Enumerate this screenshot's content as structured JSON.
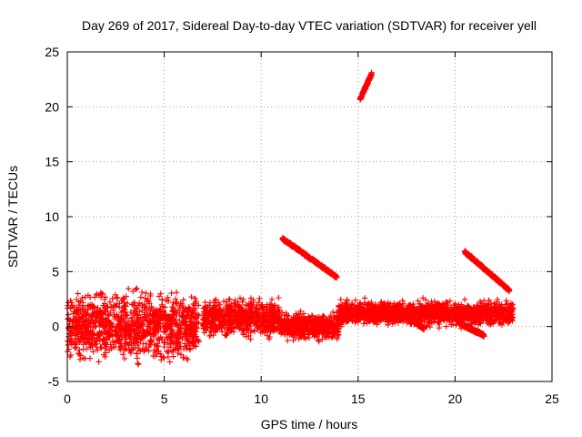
{
  "chart_data": {
    "type": "scatter",
    "title": "Day 269 of 2017, Sidereal Day-to-day VTEC variation (SDTVAR) for receiver yell",
    "xlabel": "GPS time / hours",
    "ylabel": "SDTVAR / TECUs",
    "xlim": [
      0,
      25
    ],
    "ylim": [
      -5,
      25
    ],
    "xticks": [
      0,
      5,
      10,
      15,
      20,
      25
    ],
    "yticks": [
      -5,
      0,
      5,
      10,
      15,
      20,
      25
    ],
    "xtick_labels": [
      "0",
      "5",
      "10",
      "15",
      "20",
      "25"
    ],
    "ytick_labels": [
      "-5",
      "0",
      "5",
      "10",
      "15",
      "20",
      "25"
    ],
    "grid": true,
    "marker": "+",
    "marker_color": "#ff0000",
    "series": [
      {
        "name": "SDTVAR",
        "description": "dense noisy cluster",
        "x_start": 0.0,
        "x_end": 6.8,
        "y_center": 0.0,
        "y_spread": 2.5
      },
      {
        "name": "SDTVAR",
        "x_start": 7.0,
        "x_end": 11.0,
        "y_center": 0.8,
        "y_spread": 1.4
      },
      {
        "name": "SDTVAR",
        "x_start": 11.0,
        "x_end": 14.0,
        "y_center": 0.0,
        "y_spread": 1.0
      },
      {
        "name": "SDTVAR",
        "x_start": 14.0,
        "x_end": 23.0,
        "y_center": 1.2,
        "y_spread": 0.9
      },
      {
        "name": "SDTVAR",
        "description": "arc",
        "x_start": 11.1,
        "x_end": 13.9,
        "y_start": 8.0,
        "y_end": 4.5
      },
      {
        "name": "SDTVAR",
        "description": "arc",
        "x_start": 15.1,
        "x_end": 15.7,
        "y_start": 20.7,
        "y_end": 23.0
      },
      {
        "name": "SDTVAR",
        "description": "arc",
        "x_start": 20.5,
        "x_end": 22.8,
        "y_start": 6.8,
        "y_end": 3.3
      },
      {
        "name": "SDTVAR",
        "description": "arc",
        "x_start": 17.5,
        "x_end": 18.4,
        "y_start": 1.0,
        "y_end": -0.2
      },
      {
        "name": "SDTVAR",
        "description": "arc",
        "x_start": 20.2,
        "x_end": 21.5,
        "y_start": 0.3,
        "y_end": -0.8
      }
    ]
  }
}
